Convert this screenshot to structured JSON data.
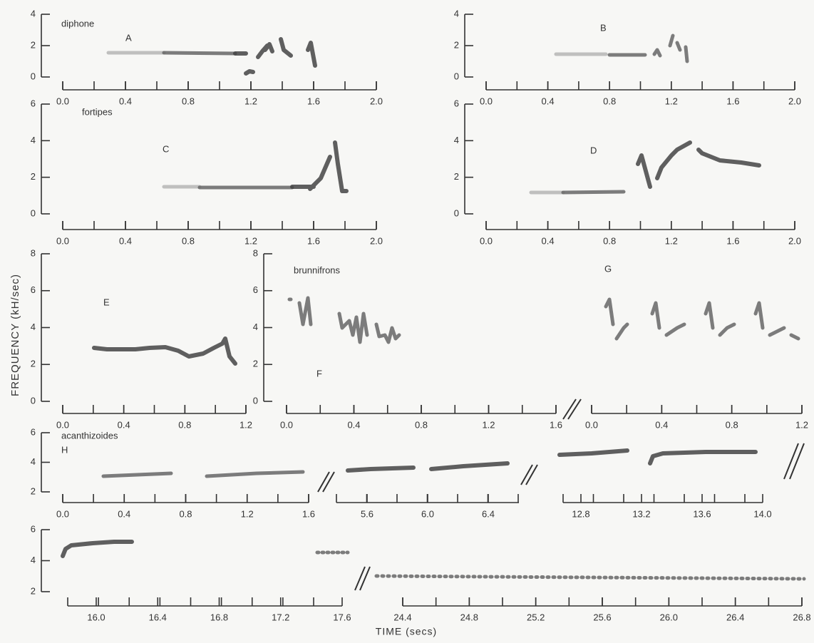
{
  "y_axis_label": "FREQUENCY (kH/sec)",
  "x_axis_label": "TIME (secs)",
  "species": [
    "diphone",
    "fortipes",
    "brunnifrons",
    "acanthizoides"
  ],
  "panel_labels": [
    "A",
    "B",
    "C",
    "D",
    "E",
    "F",
    "G",
    "H"
  ],
  "axes": [
    {
      "yticks": [
        0,
        2,
        4
      ],
      "xticks": [
        {
          "value": 0,
          "label": "0.0"
        },
        0.4,
        0.8,
        1.2,
        1.6,
        {
          "value": 2,
          "label": "2.0"
        }
      ]
    },
    {
      "yticks": [
        0,
        2,
        4
      ],
      "xticks": [
        {
          "value": 0,
          "label": "0.0"
        },
        0.4,
        0.8,
        1.2,
        1.6,
        {
          "value": 2,
          "label": "2.0"
        }
      ]
    },
    {
      "yticks": [
        0,
        2,
        4,
        6
      ],
      "xticks": [
        {
          "value": 0,
          "label": "0.0"
        },
        0.4,
        0.8,
        1.2,
        1.6,
        {
          "value": 2,
          "label": "2.0"
        }
      ]
    },
    {
      "yticks": [
        0,
        2,
        4,
        6
      ],
      "xticks": [
        {
          "value": 0,
          "label": "0.0"
        },
        0.4,
        0.8,
        1.2,
        1.6,
        {
          "value": 2,
          "label": "2.0"
        }
      ]
    },
    {
      "yticks": [
        0,
        2,
        4,
        6,
        8
      ],
      "xticks": [
        {
          "value": 0,
          "label": "0.0"
        },
        0.4,
        0.8,
        1.2
      ]
    },
    {
      "yticks": [
        0,
        2,
        4,
        6,
        8
      ],
      "xticks": [
        {
          "value": 0,
          "label": "0.0"
        },
        0.4,
        0.8,
        1.2,
        1.6
      ]
    },
    {
      "xticks": [
        {
          "value": 0,
          "label": "0.0"
        },
        0.4,
        0.8,
        1.2
      ]
    },
    {
      "yticks": [
        2,
        4,
        6
      ],
      "xticks": [
        {
          "value": 0,
          "label": "0.0"
        },
        0.4,
        0.8,
        1.2,
        1.6
      ]
    },
    {
      "xticks": [
        5.6,
        {
          "value": 6,
          "label": "6.0"
        },
        6.4
      ]
    },
    {
      "xticks": [
        12.8,
        13.2,
        13.6,
        {
          "value": 14,
          "label": "14.0"
        }
      ]
    },
    {
      "yticks": [
        2,
        4,
        6
      ],
      "xticks": [
        {
          "value": 16,
          "label": "16.0"
        },
        16.4,
        16.8,
        17.2,
        17.6
      ]
    },
    {
      "xticks": [
        24.4,
        24.8,
        25.2,
        25.6,
        {
          "value": 26,
          "label": "26.0"
        },
        26.4,
        26.8
      ]
    }
  ]
}
